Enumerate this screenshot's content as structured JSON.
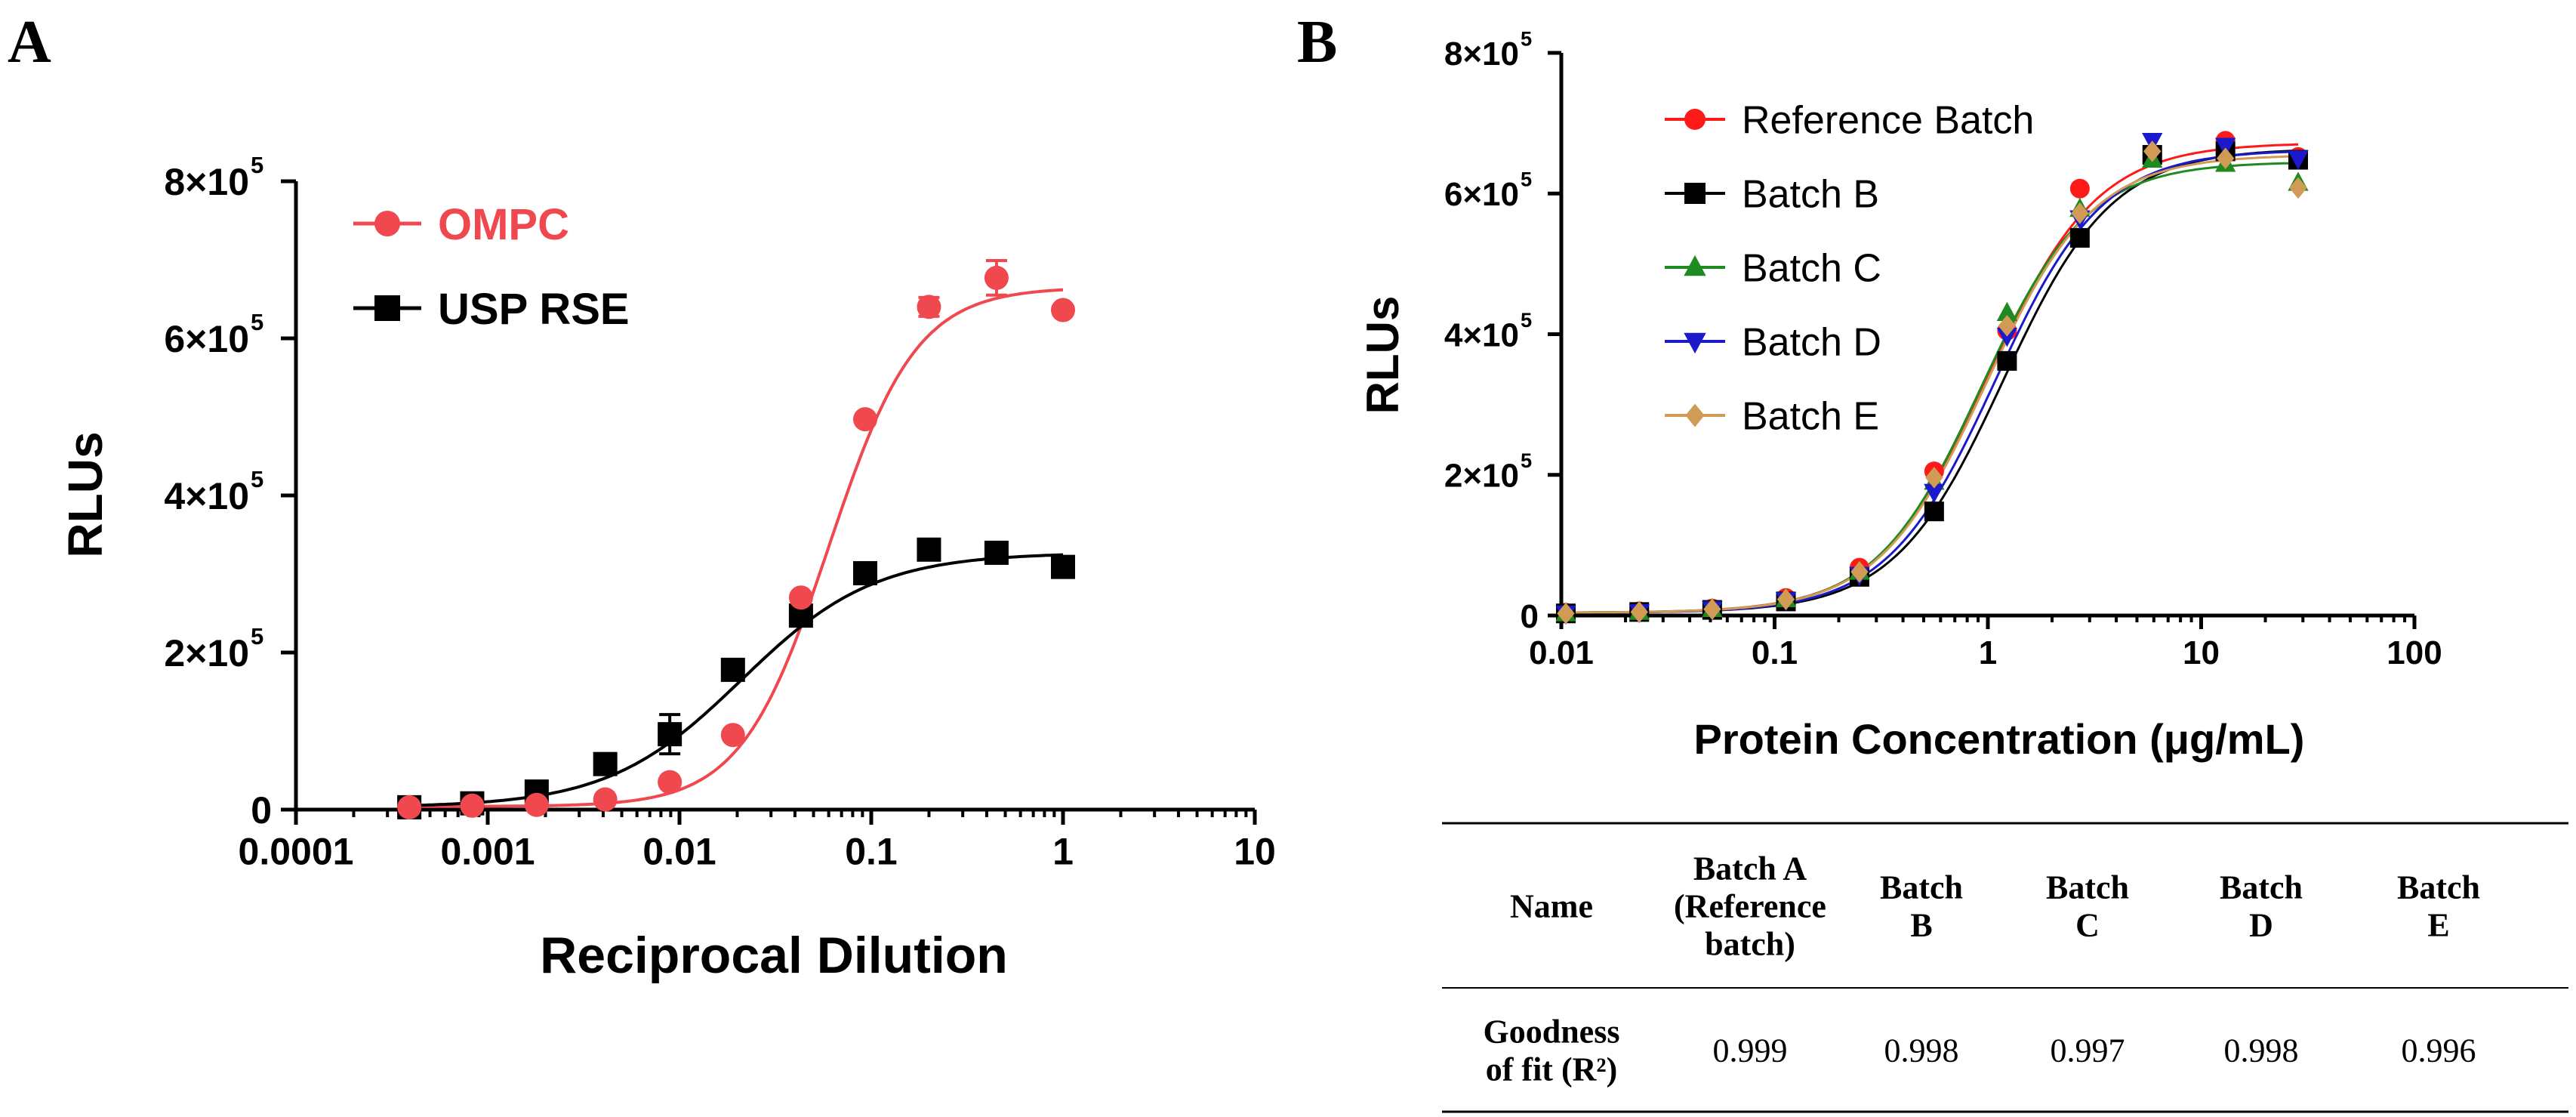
{
  "panel_a": {
    "letter": "A",
    "ytick_exp": "5"
  },
  "panel_b": {
    "letter": "B",
    "ytick_exp": "5"
  },
  "chart_data": [
    {
      "type": "scatter",
      "panel": "A",
      "title": "",
      "xlabel": "Reciprocal Dilution",
      "ylabel": "RLUs",
      "xscale": "log",
      "xlim": [
        0.0001,
        10
      ],
      "ylim": [
        0,
        800000
      ],
      "xticks": [
        0.0001,
        0.001,
        0.01,
        0.1,
        1,
        10
      ],
      "xtick_labels": [
        "0.0001",
        "0.001",
        "0.01",
        "0.1",
        "1",
        "10"
      ],
      "yticks": [
        0,
        200000,
        400000,
        600000,
        800000
      ],
      "ytick_labels": [
        "0",
        "2×10",
        "4×10",
        "6×10",
        "8×10"
      ],
      "legend": "top-left",
      "fit": "four-parameter logistic",
      "series": [
        {
          "name": "OMPC",
          "color": "#f0484f",
          "marker": "circle",
          "x": [
            0.00039,
            0.00083,
            0.0018,
            0.0041,
            0.0089,
            0.019,
            0.043,
            0.093,
            0.2,
            0.45,
            1.0
          ],
          "y": [
            3000,
            5000,
            6000,
            13000,
            35000,
            95000,
            270000,
            497000,
            640000,
            677000,
            636000
          ],
          "error": [
            0,
            0,
            0,
            0,
            0,
            0,
            0,
            0,
            12000,
            22000,
            0
          ],
          "fit": {
            "bottom": 4000,
            "top": 665000,
            "ec50": 0.06,
            "hill": 1.9
          }
        },
        {
          "name": "USP RSE",
          "color": "#000000",
          "marker": "square",
          "x": [
            0.00039,
            0.00083,
            0.0018,
            0.0041,
            0.0089,
            0.019,
            0.043,
            0.093,
            0.2,
            0.45,
            1.0
          ],
          "y": [
            3000,
            8000,
            23000,
            58000,
            96000,
            178000,
            247000,
            301000,
            331000,
            327000,
            309000
          ],
          "error": [
            0,
            0,
            0,
            0,
            25000,
            0,
            0,
            0,
            0,
            0,
            0
          ],
          "fit": {
            "bottom": 3000,
            "top": 327000,
            "ec50": 0.021,
            "hill": 1.25
          }
        }
      ]
    },
    {
      "type": "scatter",
      "panel": "B",
      "title": "",
      "xlabel": "Protein Concentration (μg/mL)",
      "ylabel": "RLUs",
      "xscale": "log",
      "xlim": [
        0.01,
        100
      ],
      "ylim": [
        0,
        800000
      ],
      "xticks": [
        0.01,
        0.1,
        1,
        10,
        100
      ],
      "xtick_labels": [
        "0.01",
        "0.1",
        "1",
        "10",
        "100"
      ],
      "yticks": [
        0,
        200000,
        400000,
        600000,
        800000
      ],
      "ytick_labels": [
        "0",
        "2×10",
        "4×10",
        "6×10",
        "8×10"
      ],
      "legend": "top-left",
      "fit": "four-parameter logistic",
      "series": [
        {
          "name": "Reference Batch",
          "color": "#ff1a1a",
          "marker": "circle",
          "x": [
            0.0105,
            0.0232,
            0.051,
            0.113,
            0.25,
            0.56,
            1.23,
            2.7,
            5.9,
            13,
            28.5
          ],
          "y": [
            4000,
            6000,
            10000,
            25000,
            68000,
            205000,
            405000,
            607000,
            655000,
            675000,
            652000
          ],
          "fit": {
            "bottom": 4000,
            "top": 672000,
            "ec50": 1.0,
            "hill": 1.7
          }
        },
        {
          "name": "Batch B",
          "color": "#000000",
          "marker": "square",
          "x": [
            0.0105,
            0.0232,
            0.051,
            0.113,
            0.25,
            0.56,
            1.23,
            2.7,
            5.9,
            13,
            28.5
          ],
          "y": [
            3000,
            5000,
            8000,
            20000,
            55000,
            148000,
            362000,
            537000,
            655000,
            660000,
            648000
          ],
          "fit": {
            "bottom": 4000,
            "top": 664000,
            "ec50": 1.18,
            "hill": 1.7
          }
        },
        {
          "name": "Batch C",
          "color": "#1f8a1f",
          "marker": "triangle-up",
          "x": [
            0.0105,
            0.0232,
            0.051,
            0.113,
            0.25,
            0.56,
            1.23,
            2.7,
            5.9,
            13,
            28.5
          ],
          "y": [
            3000,
            5000,
            9000,
            23000,
            62000,
            190000,
            430000,
            578000,
            648000,
            642000,
            615000
          ],
          "fit": {
            "bottom": 4000,
            "top": 645000,
            "ec50": 0.93,
            "hill": 1.75
          }
        },
        {
          "name": "Batch D",
          "color": "#1a1acc",
          "marker": "triangle-down",
          "x": [
            0.0105,
            0.0232,
            0.051,
            0.113,
            0.25,
            0.56,
            1.23,
            2.7,
            5.9,
            13,
            28.5
          ],
          "y": [
            3000,
            5000,
            9000,
            22000,
            58000,
            176000,
            398000,
            565000,
            675000,
            668000,
            650000
          ],
          "fit": {
            "bottom": 4000,
            "top": 662000,
            "ec50": 1.08,
            "hill": 1.72
          }
        },
        {
          "name": "Batch E",
          "color": "#d19a55",
          "marker": "diamond",
          "x": [
            0.0105,
            0.0232,
            0.051,
            0.113,
            0.25,
            0.56,
            1.23,
            2.7,
            5.9,
            13,
            28.5
          ],
          "y": [
            3000,
            5000,
            9000,
            23000,
            62000,
            196000,
            412000,
            572000,
            660000,
            650000,
            608000
          ],
          "fit": {
            "bottom": 4000,
            "top": 655000,
            "ec50": 0.98,
            "hill": 1.72
          }
        }
      ]
    },
    {
      "type": "table",
      "panel": "B",
      "columns": [
        "Name",
        "Batch A\n(Reference\nbatch)",
        "Batch\nB",
        "Batch\nC",
        "Batch\nD",
        "Batch\nE"
      ],
      "rows": [
        {
          "label": "Goodness\nof fit (R²)",
          "values": [
            "0.999",
            "0.998",
            "0.997",
            "0.998",
            "0.996"
          ]
        }
      ]
    }
  ]
}
